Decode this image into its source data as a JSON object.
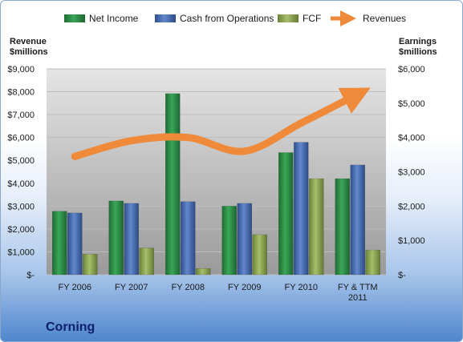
{
  "chart_data": {
    "type": "bar",
    "title": "Corning",
    "categories": [
      "FY 2006",
      "FY 2007",
      "FY 2008",
      "FY 2009",
      "FY 2010",
      "FY & TTM 2011"
    ],
    "series": [
      {
        "name": "Net Income",
        "axis": "right",
        "values": [
          1850,
          2150,
          5280,
          2000,
          3560,
          2800
        ],
        "color": "#2e9147"
      },
      {
        "name": "Cash from Operations",
        "axis": "right",
        "values": [
          1800,
          2080,
          2130,
          2080,
          3860,
          3200
        ],
        "color": "#4b72b8"
      },
      {
        "name": "FCF",
        "axis": "right",
        "values": [
          600,
          780,
          180,
          1170,
          2800,
          720
        ],
        "color": "#8fa855"
      },
      {
        "name": "Revenues",
        "axis": "left",
        "type": "line",
        "values": [
          5170,
          5860,
          6000,
          5400,
          6630,
          7890
        ],
        "color": "#ee8a3a"
      }
    ],
    "ylabel_left": "Revenue\n$millions",
    "ylabel_right": "Earnings\n$millions",
    "ylim_left": [
      0,
      9000
    ],
    "ylim_right": [
      0,
      6000
    ],
    "yticks_left": [
      "$-",
      "$1,000",
      "$2,000",
      "$3,000",
      "$4,000",
      "$5,000",
      "$6,000",
      "$7,000",
      "$8,000",
      "$9,000"
    ],
    "yticks_right": [
      "$-",
      "$1,000",
      "$2,000",
      "$3,000",
      "$4,000",
      "$5,000",
      "$6,000"
    ],
    "legend_position": "top",
    "grid": true
  }
}
